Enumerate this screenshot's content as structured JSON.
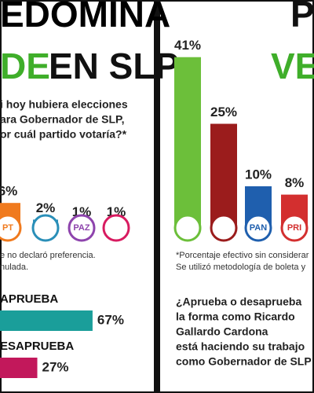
{
  "left": {
    "headline_top": "EDOMINA",
    "headline_green": "DE",
    "headline_black": "EN SLP",
    "question": [
      "i hoy hubiera elecciones",
      "ara Gobernador de SLP,",
      "or cuál partido votaría?*"
    ],
    "chart": {
      "type": "bar",
      "values": [
        6,
        2,
        1,
        1
      ],
      "value_labels": [
        "6%",
        "2%",
        "1%",
        "1%"
      ],
      "colors": [
        "#f07a1e",
        "#2a8fb8",
        "#8e44ad",
        "#d81b60"
      ]
    },
    "logos": [
      "PT",
      "PAZ"
    ],
    "note": [
      "e no declaró preferencia.",
      "nulada."
    ],
    "approval": {
      "type": "bar",
      "categories": [
        "APRUEBA",
        "ESAPRUEBA"
      ],
      "values": [
        67,
        27
      ],
      "value_labels": [
        "67%",
        "27%"
      ],
      "colors": [
        "#1a9e9a",
        "#c2185b"
      ]
    }
  },
  "right": {
    "headline_top": "P",
    "headline_green": "VE",
    "chart": {
      "type": "bar",
      "values": [
        41,
        25,
        10,
        8
      ],
      "value_labels": [
        "41%",
        "25%",
        "10%",
        "8%"
      ],
      "colors": [
        "#6cbf3a",
        "#9b1c1c",
        "#1f5fae",
        "#d32f2f"
      ]
    },
    "logos": [
      "PAN",
      "PRI"
    ],
    "note": [
      "*Porcentaje efectivo sin considerar",
      "Se utilizó metodología de boleta y"
    ],
    "question": [
      "¿Aprueba o desaprueba",
      "la forma como Ricardo",
      "Gallardo Cardona",
      "está haciendo su trabajo",
      "como Gobernador de SLP"
    ]
  }
}
